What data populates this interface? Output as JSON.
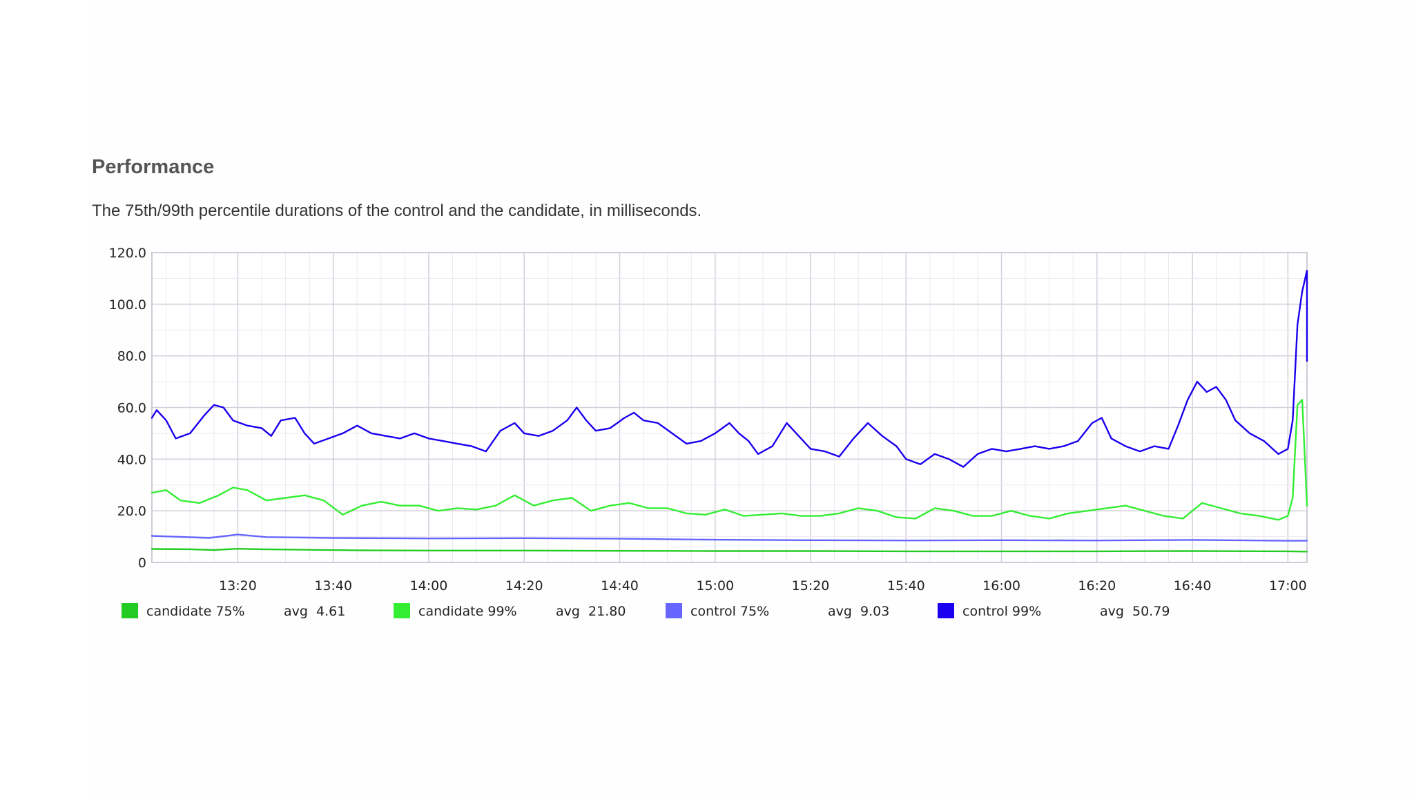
{
  "heading": "Performance",
  "description": "The 75th/99th percentile durations of the control and the candidate, in milliseconds.",
  "chart_data": {
    "type": "line",
    "x_range": [
      "13:02",
      "17:04"
    ],
    "x_tick_labels": [
      "13:20",
      "13:40",
      "14:00",
      "14:20",
      "14:40",
      "15:00",
      "15:20",
      "15:40",
      "16:00",
      "16:20",
      "16:40",
      "17:00"
    ],
    "y_tick_labels": [
      "0",
      "20.0",
      "40.0",
      "60.0",
      "80.0",
      "100.0",
      "120.0"
    ],
    "ylim": [
      0,
      120
    ],
    "grid": true,
    "legend_position": "bottom",
    "series": [
      {
        "name": "candidate 75%",
        "avg_label": "avg  4.61",
        "color": "#22cc22",
        "points": [
          [
            "13:02",
            5.2
          ],
          [
            "13:10",
            5.1
          ],
          [
            "13:15",
            4.8
          ],
          [
            "13:20",
            5.3
          ],
          [
            "13:25",
            5.1
          ],
          [
            "13:35",
            4.9
          ],
          [
            "13:45",
            4.7
          ],
          [
            "14:00",
            4.6
          ],
          [
            "14:20",
            4.6
          ],
          [
            "14:40",
            4.5
          ],
          [
            "15:00",
            4.4
          ],
          [
            "15:20",
            4.4
          ],
          [
            "15:40",
            4.3
          ],
          [
            "16:00",
            4.3
          ],
          [
            "16:20",
            4.3
          ],
          [
            "16:40",
            4.4
          ],
          [
            "17:00",
            4.3
          ],
          [
            "17:04",
            4.2
          ]
        ]
      },
      {
        "name": "candidate 99%",
        "avg_label": "avg  21.80",
        "color": "#33ee33",
        "points": [
          [
            "13:02",
            27
          ],
          [
            "13:05",
            28
          ],
          [
            "13:08",
            24
          ],
          [
            "13:12",
            23
          ],
          [
            "13:16",
            26
          ],
          [
            "13:19",
            29
          ],
          [
            "13:22",
            28
          ],
          [
            "13:26",
            24
          ],
          [
            "13:30",
            25
          ],
          [
            "13:34",
            26
          ],
          [
            "13:38",
            24
          ],
          [
            "13:42",
            18.5
          ],
          [
            "13:46",
            22
          ],
          [
            "13:50",
            23.5
          ],
          [
            "13:54",
            22
          ],
          [
            "13:58",
            22
          ],
          [
            "14:02",
            20
          ],
          [
            "14:06",
            21
          ],
          [
            "14:10",
            20.5
          ],
          [
            "14:14",
            22
          ],
          [
            "14:18",
            26
          ],
          [
            "14:22",
            22
          ],
          [
            "14:26",
            24
          ],
          [
            "14:30",
            25
          ],
          [
            "14:34",
            20
          ],
          [
            "14:38",
            22
          ],
          [
            "14:42",
            23
          ],
          [
            "14:46",
            21
          ],
          [
            "14:50",
            21
          ],
          [
            "14:54",
            19
          ],
          [
            "14:58",
            18.5
          ],
          [
            "15:02",
            20.5
          ],
          [
            "15:06",
            18
          ],
          [
            "15:10",
            18.5
          ],
          [
            "15:14",
            19
          ],
          [
            "15:18",
            18
          ],
          [
            "15:22",
            18
          ],
          [
            "15:26",
            19
          ],
          [
            "15:30",
            21
          ],
          [
            "15:34",
            20
          ],
          [
            "15:38",
            17.5
          ],
          [
            "15:42",
            17
          ],
          [
            "15:46",
            21
          ],
          [
            "15:50",
            20
          ],
          [
            "15:54",
            18
          ],
          [
            "15:58",
            18
          ],
          [
            "16:02",
            20
          ],
          [
            "16:06",
            18
          ],
          [
            "16:10",
            17
          ],
          [
            "16:14",
            19
          ],
          [
            "16:18",
            20
          ],
          [
            "16:22",
            21
          ],
          [
            "16:26",
            22
          ],
          [
            "16:30",
            20
          ],
          [
            "16:34",
            18
          ],
          [
            "16:38",
            17
          ],
          [
            "16:42",
            23
          ],
          [
            "16:46",
            21
          ],
          [
            "16:50",
            19
          ],
          [
            "16:54",
            18
          ],
          [
            "16:58",
            16.5
          ],
          [
            "17:00",
            18
          ],
          [
            "17:01",
            25
          ],
          [
            "17:02",
            61
          ],
          [
            "17:03",
            63
          ],
          [
            "17:04",
            22
          ]
        ]
      },
      {
        "name": "control 75%",
        "avg_label": "avg  9.03",
        "color": "#6666ff",
        "points": [
          [
            "13:02",
            10.3
          ],
          [
            "13:08",
            9.9
          ],
          [
            "13:14",
            9.5
          ],
          [
            "13:20",
            10.8
          ],
          [
            "13:26",
            9.8
          ],
          [
            "13:40",
            9.5
          ],
          [
            "14:00",
            9.3
          ],
          [
            "14:20",
            9.4
          ],
          [
            "14:40",
            9.2
          ],
          [
            "15:00",
            8.8
          ],
          [
            "15:20",
            8.6
          ],
          [
            "15:40",
            8.5
          ],
          [
            "16:00",
            8.6
          ],
          [
            "16:20",
            8.5
          ],
          [
            "16:40",
            8.7
          ],
          [
            "17:00",
            8.4
          ],
          [
            "17:04",
            8.4
          ]
        ]
      },
      {
        "name": "control 99%",
        "avg_label": "avg  50.79",
        "color": "#1a00ee",
        "points": [
          [
            "13:02",
            56
          ],
          [
            "13:03",
            59
          ],
          [
            "13:05",
            55
          ],
          [
            "13:07",
            48
          ],
          [
            "13:10",
            50
          ],
          [
            "13:13",
            57
          ],
          [
            "13:15",
            61
          ],
          [
            "13:17",
            60
          ],
          [
            "13:19",
            55
          ],
          [
            "13:22",
            53
          ],
          [
            "13:25",
            52
          ],
          [
            "13:27",
            49
          ],
          [
            "13:29",
            55
          ],
          [
            "13:32",
            56
          ],
          [
            "13:34",
            50
          ],
          [
            "13:36",
            46
          ],
          [
            "13:39",
            48
          ],
          [
            "13:42",
            50
          ],
          [
            "13:45",
            53
          ],
          [
            "13:48",
            50
          ],
          [
            "13:51",
            49
          ],
          [
            "13:54",
            48
          ],
          [
            "13:57",
            50
          ],
          [
            "14:00",
            48
          ],
          [
            "14:03",
            47
          ],
          [
            "14:06",
            46
          ],
          [
            "14:09",
            45
          ],
          [
            "14:12",
            43
          ],
          [
            "14:15",
            51
          ],
          [
            "14:18",
            54
          ],
          [
            "14:20",
            50
          ],
          [
            "14:23",
            49
          ],
          [
            "14:26",
            51
          ],
          [
            "14:29",
            55
          ],
          [
            "14:31",
            60
          ],
          [
            "14:33",
            55
          ],
          [
            "14:35",
            51
          ],
          [
            "14:38",
            52
          ],
          [
            "14:41",
            56
          ],
          [
            "14:43",
            58
          ],
          [
            "14:45",
            55
          ],
          [
            "14:48",
            54
          ],
          [
            "14:51",
            50
          ],
          [
            "14:54",
            46
          ],
          [
            "14:57",
            47
          ],
          [
            "15:00",
            50
          ],
          [
            "15:03",
            54
          ],
          [
            "15:05",
            50
          ],
          [
            "15:07",
            47
          ],
          [
            "15:09",
            42
          ],
          [
            "15:12",
            45
          ],
          [
            "15:15",
            54
          ],
          [
            "15:17",
            50
          ],
          [
            "15:20",
            44
          ],
          [
            "15:23",
            43
          ],
          [
            "15:26",
            41
          ],
          [
            "15:29",
            48
          ],
          [
            "15:32",
            54
          ],
          [
            "15:35",
            49
          ],
          [
            "15:38",
            45
          ],
          [
            "15:40",
            40
          ],
          [
            "15:43",
            38
          ],
          [
            "15:46",
            42
          ],
          [
            "15:49",
            40
          ],
          [
            "15:52",
            37
          ],
          [
            "15:55",
            42
          ],
          [
            "15:58",
            44
          ],
          [
            "16:01",
            43
          ],
          [
            "16:04",
            44
          ],
          [
            "16:07",
            45
          ],
          [
            "16:10",
            44
          ],
          [
            "16:13",
            45
          ],
          [
            "16:16",
            47
          ],
          [
            "16:19",
            54
          ],
          [
            "16:21",
            56
          ],
          [
            "16:23",
            48
          ],
          [
            "16:26",
            45
          ],
          [
            "16:29",
            43
          ],
          [
            "16:32",
            45
          ],
          [
            "16:35",
            44
          ],
          [
            "16:37",
            53
          ],
          [
            "16:39",
            63
          ],
          [
            "16:41",
            70
          ],
          [
            "16:43",
            66
          ],
          [
            "16:45",
            68
          ],
          [
            "16:47",
            63
          ],
          [
            "16:49",
            55
          ],
          [
            "16:52",
            50
          ],
          [
            "16:55",
            47
          ],
          [
            "16:58",
            42
          ],
          [
            "17:00",
            44
          ],
          [
            "17:01",
            55
          ],
          [
            "17:02",
            92
          ],
          [
            "17:03",
            105
          ],
          [
            "17:04",
            113
          ],
          [
            "17:04",
            78
          ],
          [
            "17:04",
            80
          ]
        ]
      }
    ]
  }
}
